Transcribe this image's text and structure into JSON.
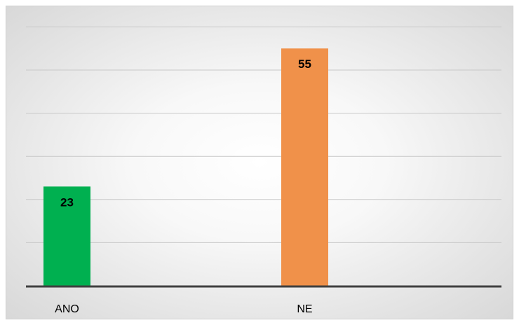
{
  "chart_data": {
    "type": "bar",
    "title": "",
    "xlabel": "",
    "ylabel": "",
    "categories": [
      "ANO",
      "NE"
    ],
    "values": [
      23,
      55
    ],
    "colors": [
      "#00b050",
      "#f0914a"
    ],
    "ylim": [
      0,
      60
    ],
    "y_gridline_step": 10,
    "grid": true,
    "legend": "none",
    "data_labels": true
  }
}
